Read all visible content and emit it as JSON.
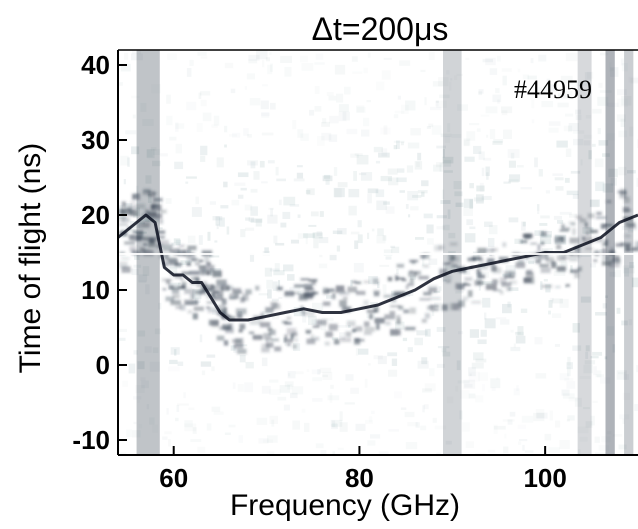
{
  "chart_data": {
    "type": "heatmap",
    "title": "Δt=200μs",
    "xlabel": "Frequency (GHz)",
    "ylabel": "Time of flight (ns)",
    "annotation": "#44959",
    "xlim": [
      54,
      110
    ],
    "ylim": [
      -12,
      42
    ],
    "x_ticks": [
      60,
      80,
      100
    ],
    "x_tick_labels": [
      "60",
      "80",
      "100"
    ],
    "y_ticks": [
      40,
      30,
      20,
      10,
      0,
      -10
    ],
    "y_tick_labels": [
      "40",
      "30",
      "20",
      "10",
      "0",
      "-10"
    ],
    "colormap": [
      "#ffffff",
      "#a9bfc2",
      "#2e3a4a",
      "#0b0f1e"
    ],
    "ridge": {
      "name": "",
      "x": [
        54,
        55,
        56,
        57,
        58,
        59,
        60,
        61,
        62,
        63,
        64,
        65,
        66,
        68,
        70,
        72,
        74,
        76,
        78,
        80,
        82,
        84,
        86,
        88,
        90,
        92,
        94,
        96,
        98,
        100,
        102,
        104,
        106,
        108,
        110
      ],
      "y": [
        17,
        18,
        19,
        20,
        19,
        13,
        12,
        12,
        11,
        11,
        9,
        7,
        6,
        6,
        6.5,
        7,
        7.5,
        7,
        7,
        7.5,
        8,
        9,
        10,
        11.5,
        12.5,
        13,
        13.5,
        14,
        14.5,
        15,
        15,
        16,
        17,
        19,
        20
      ]
    },
    "dark_bands": [
      {
        "x_start": 56,
        "x_end": 58.5,
        "intensity": 0.55
      },
      {
        "x_start": 89,
        "x_end": 91,
        "intensity": 0.4
      },
      {
        "x_start": 103.5,
        "x_end": 105,
        "intensity": 0.35
      },
      {
        "x_start": 106.5,
        "x_end": 107.5,
        "intensity": 0.7
      },
      {
        "x_start": 108.5,
        "x_end": 109.5,
        "intensity": 0.45
      }
    ],
    "grid": false
  }
}
